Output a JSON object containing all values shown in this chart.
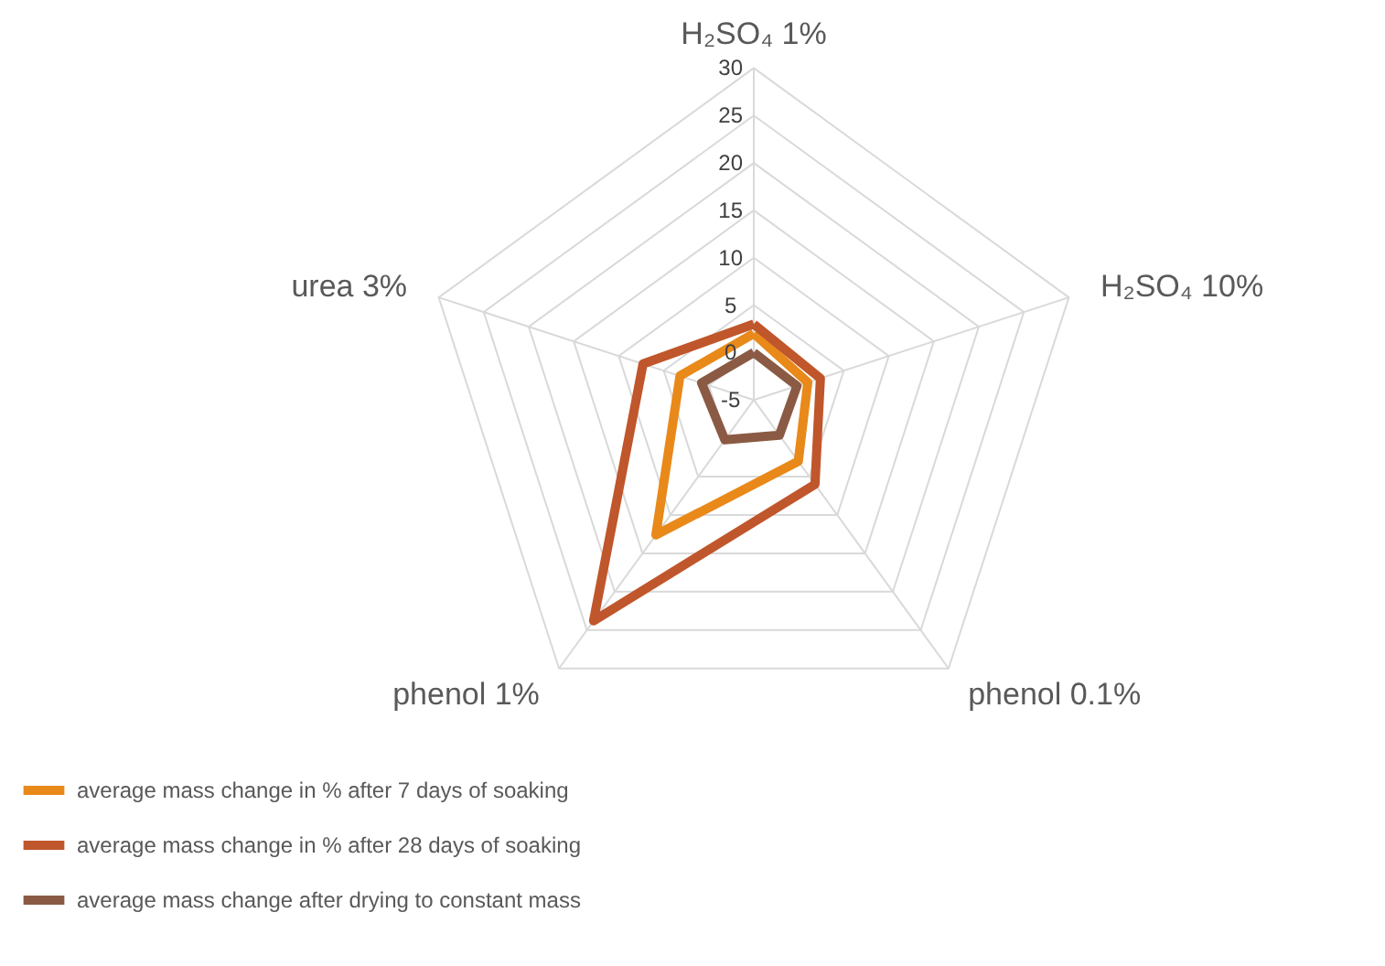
{
  "chart_data": {
    "type": "radar",
    "categories": [
      "H₂SO₄ 1%",
      "H₂SO₄ 10%",
      "phenol 0.1%",
      "phenol 1%",
      "urea 3%"
    ],
    "ylim": [
      -5,
      30
    ],
    "yticks": [
      -5,
      0,
      5,
      10,
      15,
      20,
      25,
      30
    ],
    "grid": true,
    "legend": "bottom",
    "series": [
      {
        "name": "average mass change in % after 7 days of soaking",
        "color": "#e8891a",
        "values": [
          2,
          1,
          3,
          12.6,
          3.2
        ]
      },
      {
        "name": "average mass change in % after 28 days of soaking",
        "color": "#c0562b",
        "values": [
          3,
          2.4,
          6,
          23.8,
          7.3
        ]
      },
      {
        "name": "average mass change after drying to constant mass",
        "color": "#8b5a44",
        "values": [
          0,
          -0.2,
          -0.4,
          0.2,
          0.8
        ]
      }
    ]
  }
}
